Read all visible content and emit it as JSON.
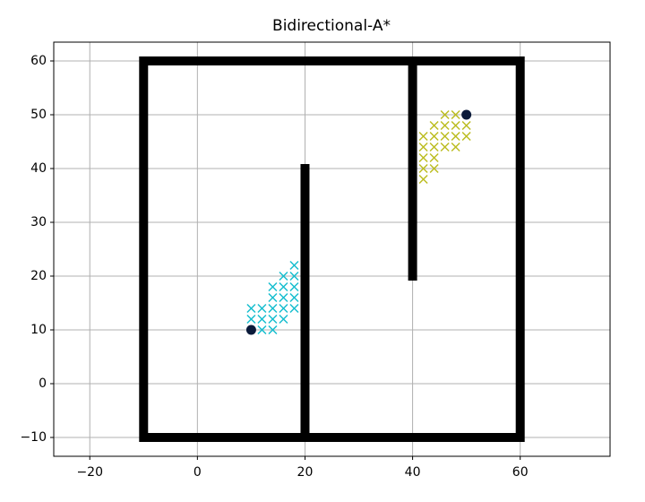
{
  "chart_data": {
    "type": "scatter",
    "title": "Bidirectional-A*",
    "xlim": [
      -26.7,
      76.7
    ],
    "ylim": [
      -13.5,
      63.5
    ],
    "xticks": [
      {
        "value": -20,
        "label": "−20"
      },
      0,
      20,
      40,
      60
    ],
    "yticks": [
      {
        "value": -10,
        "label": "−10"
      },
      0,
      10,
      20,
      30,
      40,
      50,
      60
    ],
    "grid": true,
    "series": [
      {
        "style": "line",
        "color": "#000000",
        "x": [
          -10,
          60,
          60,
          -10,
          -10,
          null,
          20,
          20,
          null,
          40,
          40
        ],
        "y": [
          -10,
          -10,
          60,
          60,
          -10,
          null,
          -10,
          40,
          null,
          20,
          60
        ]
      },
      {
        "style": "x",
        "color": "#17becf",
        "x": [
          12,
          14,
          10,
          12,
          14,
          16,
          10,
          12,
          14,
          16,
          18,
          14,
          16,
          18,
          14,
          16,
          18,
          16,
          18,
          18
        ],
        "y": [
          10,
          10,
          12,
          12,
          12,
          12,
          14,
          14,
          14,
          14,
          14,
          16,
          16,
          16,
          18,
          18,
          18,
          20,
          20,
          22
        ]
      },
      {
        "style": "x",
        "color": "#bcbd22",
        "x": [
          46,
          48,
          44,
          46,
          48,
          50,
          42,
          44,
          46,
          48,
          50,
          42,
          44,
          46,
          48,
          42,
          44,
          42,
          44,
          42
        ],
        "y": [
          50,
          50,
          48,
          48,
          48,
          48,
          46,
          46,
          46,
          46,
          46,
          44,
          44,
          44,
          44,
          42,
          42,
          40,
          40,
          38
        ]
      },
      {
        "style": "o",
        "color": "#0b1a3a",
        "x": [
          10,
          50
        ],
        "y": [
          10,
          50
        ]
      }
    ]
  }
}
